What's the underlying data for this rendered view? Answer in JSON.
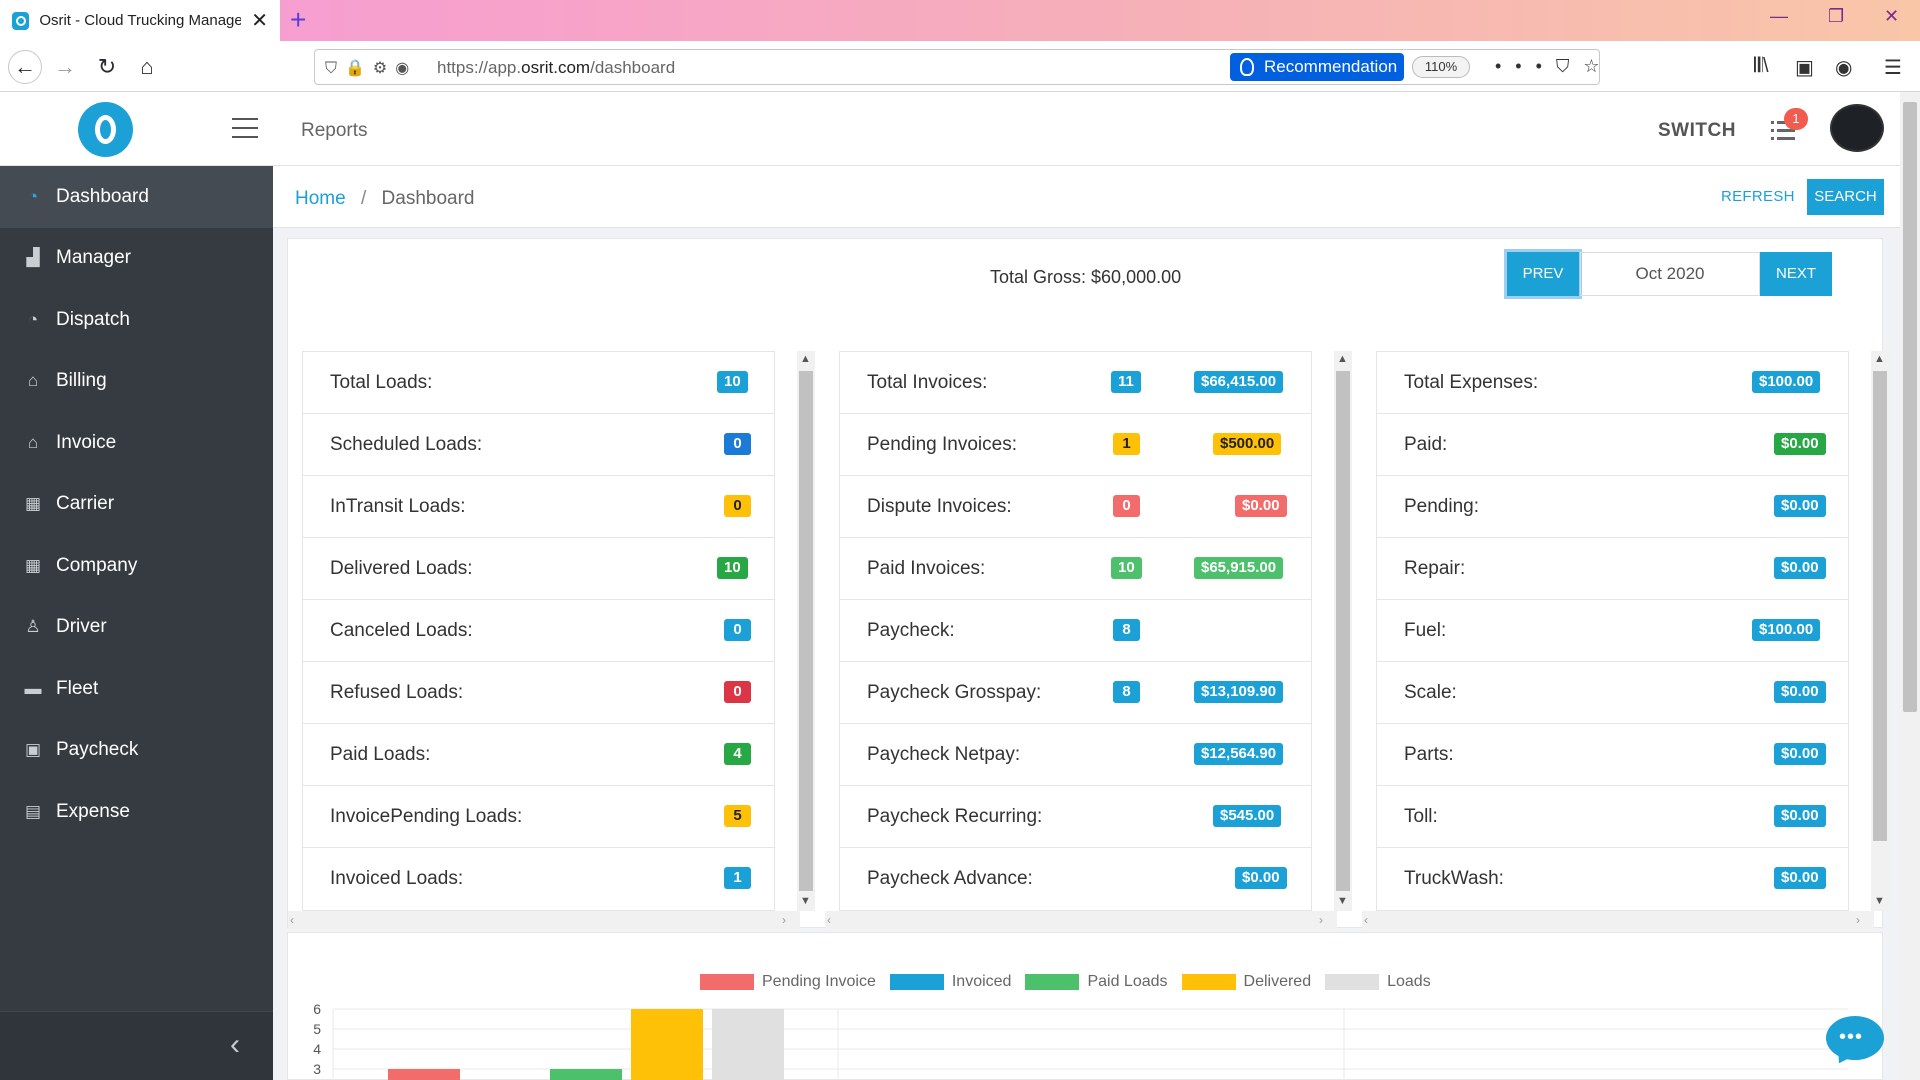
{
  "browser": {
    "tab_title": "Osrit - Cloud Trucking Managem",
    "url_prefix": "https://app.",
    "url_domain": "osrit.com",
    "url_path": "/dashboard",
    "recommendation_label": "Recommendation",
    "zoom": "110%"
  },
  "header": {
    "nav_title": "Reports",
    "switch_label": "SWITCH",
    "notification_count": "1"
  },
  "sidebar": {
    "items": [
      {
        "label": "Dashboard",
        "icon": "◔"
      },
      {
        "label": "Manager",
        "icon": "▟"
      },
      {
        "label": "Dispatch",
        "icon": "◔"
      },
      {
        "label": "Billing",
        "icon": "⌂"
      },
      {
        "label": "Invoice",
        "icon": "⌂"
      },
      {
        "label": "Carrier",
        "icon": "▦"
      },
      {
        "label": "Company",
        "icon": "▦"
      },
      {
        "label": "Driver",
        "icon": "♙"
      },
      {
        "label": "Fleet",
        "icon": "▬"
      },
      {
        "label": "Paycheck",
        "icon": "▣"
      },
      {
        "label": "Expense",
        "icon": "▤"
      }
    ]
  },
  "breadcrumb": {
    "home": "Home",
    "separator": "/",
    "current": "Dashboard",
    "refresh_label": "REFRESH",
    "search_label": "SEARCH"
  },
  "summary": {
    "total_gross": "Total Gross: $60,000.00",
    "prev_label": "PREV",
    "month": "Oct 2020",
    "next_label": "NEXT"
  },
  "loads_panel": {
    "rows": [
      {
        "label": "Total Loads:",
        "count": "10"
      },
      {
        "label": "Scheduled Loads:",
        "count": "0"
      },
      {
        "label": "InTransit Loads:",
        "count": "0"
      },
      {
        "label": "Delivered Loads:",
        "count": "10"
      },
      {
        "label": "Canceled Loads:",
        "count": "0"
      },
      {
        "label": "Refused Loads:",
        "count": "0"
      },
      {
        "label": "Paid Loads:",
        "count": "4"
      },
      {
        "label": "InvoicePending Loads:",
        "count": "5"
      },
      {
        "label": "Invoiced Loads:",
        "count": "1"
      }
    ]
  },
  "invoices_panel": {
    "rows": [
      {
        "label": "Total Invoices:",
        "count": "11",
        "amount": "$66,415.00"
      },
      {
        "label": "Pending Invoices:",
        "count": "1",
        "amount": "$500.00"
      },
      {
        "label": "Dispute Invoices:",
        "count": "0",
        "amount": "$0.00"
      },
      {
        "label": "Paid Invoices:",
        "count": "10",
        "amount": "$65,915.00"
      },
      {
        "label": "Paycheck:",
        "count": "8",
        "amount": ""
      },
      {
        "label": "Paycheck Grosspay:",
        "count": "8",
        "amount": "$13,109.90"
      },
      {
        "label": "Paycheck Netpay:",
        "count": "",
        "amount": "$12,564.90"
      },
      {
        "label": "Paycheck Recurring:",
        "count": "",
        "amount": "$545.00"
      },
      {
        "label": "Paycheck Advance:",
        "count": "",
        "amount": "$0.00"
      }
    ]
  },
  "expenses_panel": {
    "rows": [
      {
        "label": "Total Expenses:",
        "amount": "$100.00"
      },
      {
        "label": "Paid:",
        "amount": "$0.00"
      },
      {
        "label": "Pending:",
        "amount": "$0.00"
      },
      {
        "label": "Repair:",
        "amount": "$0.00"
      },
      {
        "label": "Fuel:",
        "amount": "$100.00"
      },
      {
        "label": "Scale:",
        "amount": "$0.00"
      },
      {
        "label": "Parts:",
        "amount": "$0.00"
      },
      {
        "label": "Toll:",
        "amount": "$0.00"
      },
      {
        "label": "TruckWash:",
        "amount": "$0.00"
      }
    ]
  },
  "colors": {
    "brand": "#1ba1d6",
    "pending_invoice": "#f26c6c",
    "invoiced": "#1ba1d6",
    "paid_loads": "#4cc06b",
    "delivered": "#ffc107",
    "loads": "#e0e0e0"
  },
  "chart_data": {
    "type": "bar",
    "series": [
      {
        "name": "Pending Invoice",
        "values": [
          3
        ]
      },
      {
        "name": "Invoiced",
        "values": [
          1
        ]
      },
      {
        "name": "Paid Loads",
        "values": [
          3
        ]
      },
      {
        "name": "Delivered",
        "values": [
          6
        ]
      },
      {
        "name": "Loads",
        "values": [
          6
        ]
      }
    ],
    "y_ticks": [
      "6",
      "5",
      "4",
      "3"
    ],
    "legend_position": "top",
    "grid": true
  }
}
